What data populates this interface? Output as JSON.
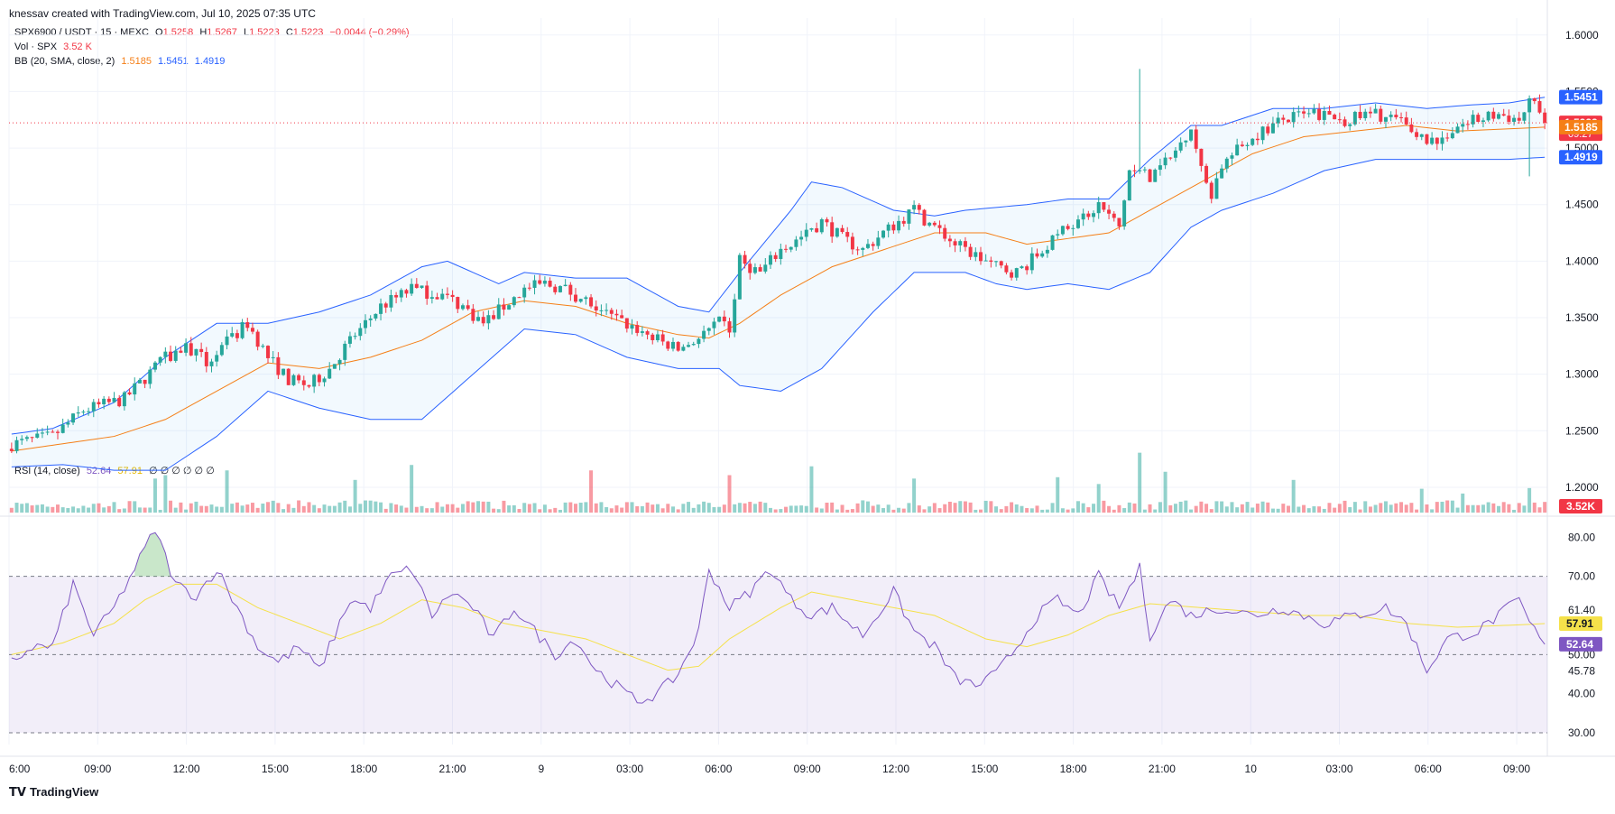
{
  "header": {
    "attribution": "knessav created with TradingView.com, Jul 10, 2025 07:35 UTC"
  },
  "legend": {
    "symbol": "SPX6900 / USDT · 15 · MEXC",
    "o_label": "O",
    "o_value": "1.5258",
    "h_label": "H",
    "h_value": "1.5267",
    "l_label": "L",
    "l_value": "1.5223",
    "c_label": "C",
    "c_value": "1.5223",
    "change": "−0.0044 (−0.29%)",
    "vol_label": "Vol · SPX",
    "vol_value": "3.52 K",
    "bb_label": "BB (20, SMA, close, 2)",
    "bb_basis": "1.5185",
    "bb_upper": "1.5451",
    "bb_lower": "1.4919",
    "rsi_label": "RSI (14, close)",
    "rsi_value": "52.64",
    "rsi_ma": "57.91",
    "rsi_extra": "∅ ∅ ∅ ∅ ∅ ∅"
  },
  "footer": {
    "logo_text": "TradingView"
  },
  "colors": {
    "up": "#26a69a",
    "down": "#f23645",
    "bb_band": "#2962ff",
    "bb_basis": "#f57f17",
    "rsi": "#7e57c2",
    "rsi_ma": "#f5e14a",
    "grid": "#f0f3fa"
  },
  "chart_data": [
    {
      "type": "candlestick",
      "title": "SPX6900 / USDT · 15 · MEXC",
      "price_axis_ticks": [
        "1.6000",
        "1.5500",
        "1.5000",
        "1.4500",
        "1.4000",
        "1.3500",
        "1.3000",
        "1.2500",
        "1.2000"
      ],
      "price_range": [
        1.18,
        1.615
      ],
      "time_axis_ticks": [
        "6:00",
        "09:00",
        "12:00",
        "15:00",
        "18:00",
        "21:00",
        "9",
        "03:00",
        "06:00",
        "09:00",
        "12:00",
        "15:00",
        "18:00",
        "21:00",
        "10",
        "03:00",
        "06:00",
        "09:00"
      ],
      "price_labels": [
        {
          "text": "1.5451",
          "value": 1.5451,
          "color": "#2962ff"
        },
        {
          "text": "1.5223",
          "value": 1.5223,
          "color": "#f23645",
          "sub": "09:27"
        },
        {
          "text": "1.5185",
          "value": 1.5185,
          "color": "#f57f17"
        },
        {
          "text": "1.4919",
          "value": 1.4919,
          "color": "#2962ff"
        }
      ],
      "volume_label": "3.52K",
      "last_price": 1.5223,
      "close_keypoints": [
        [
          0,
          1.238
        ],
        [
          8,
          1.245
        ],
        [
          14,
          1.268
        ],
        [
          22,
          1.278
        ],
        [
          30,
          1.315
        ],
        [
          34,
          1.325
        ],
        [
          38,
          1.31
        ],
        [
          46,
          1.345
        ],
        [
          50,
          1.315
        ],
        [
          54,
          1.295
        ],
        [
          58,
          1.29
        ],
        [
          62,
          1.305
        ],
        [
          66,
          1.33
        ],
        [
          72,
          1.36
        ],
        [
          78,
          1.375
        ],
        [
          84,
          1.37
        ],
        [
          88,
          1.36
        ],
        [
          92,
          1.345
        ],
        [
          96,
          1.36
        ],
        [
          100,
          1.375
        ],
        [
          104,
          1.38
        ],
        [
          108,
          1.375
        ],
        [
          112,
          1.365
        ],
        [
          118,
          1.348
        ],
        [
          122,
          1.34
        ],
        [
          126,
          1.33
        ],
        [
          130,
          1.322
        ],
        [
          134,
          1.332
        ],
        [
          138,
          1.345
        ],
        [
          140,
          1.34
        ],
        [
          142,
          1.4
        ],
        [
          146,
          1.39
        ],
        [
          150,
          1.41
        ],
        [
          154,
          1.42
        ],
        [
          158,
          1.435
        ],
        [
          162,
          1.42
        ],
        [
          166,
          1.41
        ],
        [
          170,
          1.425
        ],
        [
          176,
          1.445
        ],
        [
          180,
          1.43
        ],
        [
          184,
          1.415
        ],
        [
          188,
          1.405
        ],
        [
          192,
          1.395
        ],
        [
          196,
          1.39
        ],
        [
          200,
          1.405
        ],
        [
          206,
          1.43
        ],
        [
          212,
          1.45
        ],
        [
          216,
          1.43
        ],
        [
          218,
          1.48
        ],
        [
          222,
          1.475
        ],
        [
          226,
          1.49
        ],
        [
          230,
          1.52
        ],
        [
          232,
          1.48
        ],
        [
          234,
          1.46
        ],
        [
          236,
          1.485
        ],
        [
          242,
          1.51
        ],
        [
          248,
          1.525
        ],
        [
          254,
          1.53
        ],
        [
          260,
          1.525
        ],
        [
          266,
          1.53
        ],
        [
          270,
          1.525
        ],
        [
          274,
          1.512
        ],
        [
          278,
          1.505
        ],
        [
          282,
          1.52
        ],
        [
          286,
          1.525
        ],
        [
          290,
          1.53
        ],
        [
          294,
          1.525
        ],
        [
          297,
          1.545
        ],
        [
          299,
          1.523
        ]
      ],
      "bb_basis_keypoints": [
        [
          0,
          1.232
        ],
        [
          20,
          1.245
        ],
        [
          30,
          1.26
        ],
        [
          40,
          1.285
        ],
        [
          50,
          1.31
        ],
        [
          60,
          1.305
        ],
        [
          70,
          1.315
        ],
        [
          80,
          1.33
        ],
        [
          90,
          1.355
        ],
        [
          100,
          1.365
        ],
        [
          110,
          1.36
        ],
        [
          120,
          1.345
        ],
        [
          130,
          1.335
        ],
        [
          136,
          1.332
        ],
        [
          142,
          1.345
        ],
        [
          150,
          1.37
        ],
        [
          160,
          1.395
        ],
        [
          170,
          1.41
        ],
        [
          180,
          1.425
        ],
        [
          190,
          1.425
        ],
        [
          198,
          1.415
        ],
        [
          206,
          1.42
        ],
        [
          214,
          1.425
        ],
        [
          222,
          1.445
        ],
        [
          232,
          1.47
        ],
        [
          242,
          1.495
        ],
        [
          252,
          1.51
        ],
        [
          262,
          1.515
        ],
        [
          272,
          1.52
        ],
        [
          282,
          1.515
        ],
        [
          292,
          1.517
        ],
        [
          299,
          1.5185
        ]
      ],
      "bb_upper_keypoints": [
        [
          0,
          1.247
        ],
        [
          8,
          1.252
        ],
        [
          20,
          1.275
        ],
        [
          30,
          1.315
        ],
        [
          40,
          1.345
        ],
        [
          50,
          1.345
        ],
        [
          60,
          1.355
        ],
        [
          70,
          1.37
        ],
        [
          80,
          1.395
        ],
        [
          85,
          1.4
        ],
        [
          95,
          1.38
        ],
        [
          100,
          1.39
        ],
        [
          110,
          1.385
        ],
        [
          120,
          1.385
        ],
        [
          130,
          1.36
        ],
        [
          136,
          1.355
        ],
        [
          142,
          1.39
        ],
        [
          152,
          1.445
        ],
        [
          156,
          1.47
        ],
        [
          162,
          1.465
        ],
        [
          172,
          1.445
        ],
        [
          180,
          1.44
        ],
        [
          186,
          1.445
        ],
        [
          198,
          1.45
        ],
        [
          206,
          1.455
        ],
        [
          214,
          1.455
        ],
        [
          222,
          1.49
        ],
        [
          230,
          1.52
        ],
        [
          236,
          1.52
        ],
        [
          246,
          1.535
        ],
        [
          256,
          1.535
        ],
        [
          266,
          1.54
        ],
        [
          276,
          1.535
        ],
        [
          284,
          1.538
        ],
        [
          292,
          1.54
        ],
        [
          299,
          1.545
        ]
      ],
      "bb_lower_keypoints": [
        [
          0,
          1.218
        ],
        [
          10,
          1.22
        ],
        [
          20,
          1.215
        ],
        [
          30,
          1.215
        ],
        [
          40,
          1.245
        ],
        [
          50,
          1.285
        ],
        [
          60,
          1.27
        ],
        [
          70,
          1.26
        ],
        [
          80,
          1.26
        ],
        [
          90,
          1.3
        ],
        [
          100,
          1.34
        ],
        [
          110,
          1.335
        ],
        [
          120,
          1.315
        ],
        [
          130,
          1.305
        ],
        [
          138,
          1.305
        ],
        [
          142,
          1.29
        ],
        [
          150,
          1.285
        ],
        [
          158,
          1.305
        ],
        [
          168,
          1.355
        ],
        [
          176,
          1.39
        ],
        [
          186,
          1.39
        ],
        [
          192,
          1.38
        ],
        [
          198,
          1.375
        ],
        [
          206,
          1.38
        ],
        [
          214,
          1.375
        ],
        [
          222,
          1.39
        ],
        [
          230,
          1.43
        ],
        [
          236,
          1.445
        ],
        [
          246,
          1.46
        ],
        [
          256,
          1.48
        ],
        [
          266,
          1.49
        ],
        [
          276,
          1.49
        ],
        [
          286,
          1.49
        ],
        [
          292,
          1.49
        ],
        [
          299,
          1.4919
        ]
      ],
      "volume_spikes": [
        [
          28,
          0.5
        ],
        [
          30,
          0.55
        ],
        [
          42,
          0.62
        ],
        [
          67,
          0.48
        ],
        [
          78,
          0.7
        ],
        [
          113,
          0.62
        ],
        [
          140,
          0.55
        ],
        [
          156,
          0.68
        ],
        [
          176,
          0.5
        ],
        [
          204,
          0.52
        ],
        [
          212,
          0.42
        ],
        [
          220,
          0.88
        ],
        [
          225,
          0.6
        ],
        [
          250,
          0.48
        ],
        [
          275,
          0.35
        ],
        [
          283,
          0.28
        ],
        [
          296,
          0.36
        ]
      ]
    },
    {
      "type": "line",
      "title": "RSI (14, close)",
      "y_axis_ticks": [
        "80.00",
        "70.00",
        "61.40",
        "50.00",
        "45.78",
        "40.00",
        "30.00"
      ],
      "y_range": [
        27,
        84
      ],
      "band": [
        30,
        70
      ],
      "midline": 50,
      "value_labels": [
        {
          "text": "57.91",
          "value": 57.91,
          "color": "#f5e14a"
        },
        {
          "text": "52.64",
          "value": 52.64,
          "color": "#7e57c2"
        }
      ],
      "series": [
        {
          "name": "RSI",
          "keypoints": [
            [
              0,
              48
            ],
            [
              4,
              52
            ],
            [
              8,
              52
            ],
            [
              12,
              68
            ],
            [
              16,
              55
            ],
            [
              20,
              62
            ],
            [
              24,
              72
            ],
            [
              28,
              82
            ],
            [
              32,
              68
            ],
            [
              36,
              65
            ],
            [
              40,
              72
            ],
            [
              44,
              62
            ],
            [
              48,
              52
            ],
            [
              52,
              48
            ],
            [
              56,
              52
            ],
            [
              60,
              46
            ],
            [
              66,
              64
            ],
            [
              70,
              62
            ],
            [
              74,
              70
            ],
            [
              78,
              72
            ],
            [
              82,
              60
            ],
            [
              86,
              66
            ],
            [
              90,
              62
            ],
            [
              94,
              54
            ],
            [
              98,
              62
            ],
            [
              102,
              56
            ],
            [
              106,
              50
            ],
            [
              110,
              54
            ],
            [
              114,
              46
            ],
            [
              118,
              42
            ],
            [
              122,
              38
            ],
            [
              126,
              40
            ],
            [
              130,
              45
            ],
            [
              134,
              56
            ],
            [
              136,
              72
            ],
            [
              140,
              62
            ],
            [
              144,
              66
            ],
            [
              148,
              72
            ],
            [
              152,
              64
            ],
            [
              156,
              60
            ],
            [
              160,
              62
            ],
            [
              166,
              55
            ],
            [
              172,
              66
            ],
            [
              176,
              56
            ],
            [
              180,
              52
            ],
            [
              184,
              44
            ],
            [
              188,
              42
            ],
            [
              192,
              45
            ],
            [
              196,
              52
            ],
            [
              200,
              60
            ],
            [
              204,
              64
            ],
            [
              208,
              60
            ],
            [
              212,
              70
            ],
            [
              216,
              62
            ],
            [
              220,
              72
            ],
            [
              222,
              55
            ],
            [
              226,
              64
            ],
            [
              230,
              60
            ],
            [
              236,
              62
            ],
            [
              242,
              60
            ],
            [
              248,
              62
            ],
            [
              256,
              58
            ],
            [
              262,
              60
            ],
            [
              268,
              62
            ],
            [
              272,
              58
            ],
            [
              276,
              46
            ],
            [
              280,
              54
            ],
            [
              286,
              56
            ],
            [
              290,
              60
            ],
            [
              294,
              64
            ],
            [
              296,
              58
            ],
            [
              299,
              52.64
            ]
          ]
        },
        {
          "name": "RSI MA",
          "keypoints": [
            [
              0,
              50
            ],
            [
              10,
              53
            ],
            [
              20,
              58
            ],
            [
              26,
              64
            ],
            [
              32,
              68
            ],
            [
              40,
              68
            ],
            [
              48,
              62
            ],
            [
              56,
              58
            ],
            [
              64,
              54
            ],
            [
              72,
              58
            ],
            [
              80,
              64
            ],
            [
              88,
              62
            ],
            [
              96,
              58
            ],
            [
              104,
              56
            ],
            [
              112,
              54
            ],
            [
              120,
              50
            ],
            [
              128,
              46
            ],
            [
              134,
              47
            ],
            [
              140,
              54
            ],
            [
              150,
              62
            ],
            [
              156,
              66
            ],
            [
              164,
              64
            ],
            [
              172,
              62
            ],
            [
              180,
              60
            ],
            [
              190,
              54
            ],
            [
              198,
              52
            ],
            [
              206,
              55
            ],
            [
              214,
              60
            ],
            [
              222,
              63
            ],
            [
              232,
              62
            ],
            [
              242,
              61
            ],
            [
              252,
              60
            ],
            [
              262,
              60
            ],
            [
              272,
              58
            ],
            [
              282,
              57
            ],
            [
              292,
              57.5
            ],
            [
              299,
              57.91
            ]
          ]
        }
      ]
    }
  ]
}
